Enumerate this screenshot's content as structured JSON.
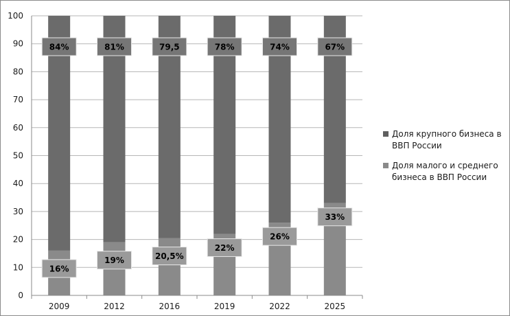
{
  "chart_data": {
    "type": "bar",
    "stacked": true,
    "categories": [
      "2009",
      "2012",
      "2016",
      "2019",
      "2022",
      "2025"
    ],
    "series": [
      {
        "name": "Доля малого и среднего бизнеса в ВВП России",
        "values": [
          16,
          19,
          20.5,
          22,
          26,
          33
        ],
        "labels": [
          "16%",
          "19%",
          "20,5%",
          "22%",
          "26%",
          "33%"
        ],
        "color": "#8a8a8a"
      },
      {
        "name": "Доля крупного бизнеса в ВВП России",
        "values": [
          84,
          81,
          79.5,
          78,
          74,
          67
        ],
        "labels": [
          "84%",
          "81%",
          "79,5",
          "78%",
          "74%",
          "67%"
        ],
        "color": "#6b6b6b"
      }
    ],
    "y_ticks": [
      "0",
      "10",
      "20",
      "30",
      "40",
      "50",
      "60",
      "70",
      "80",
      "90",
      "100"
    ],
    "ylim": [
      0,
      100
    ],
    "grid": true,
    "legend_position": "right",
    "legend": [
      {
        "label": "Доля крупного бизнеса в ВВП России",
        "color": "#5f5f5f"
      },
      {
        "label": "Доля малого и среднего бизнеса в ВВП России",
        "color": "#8a8a8a"
      }
    ]
  }
}
